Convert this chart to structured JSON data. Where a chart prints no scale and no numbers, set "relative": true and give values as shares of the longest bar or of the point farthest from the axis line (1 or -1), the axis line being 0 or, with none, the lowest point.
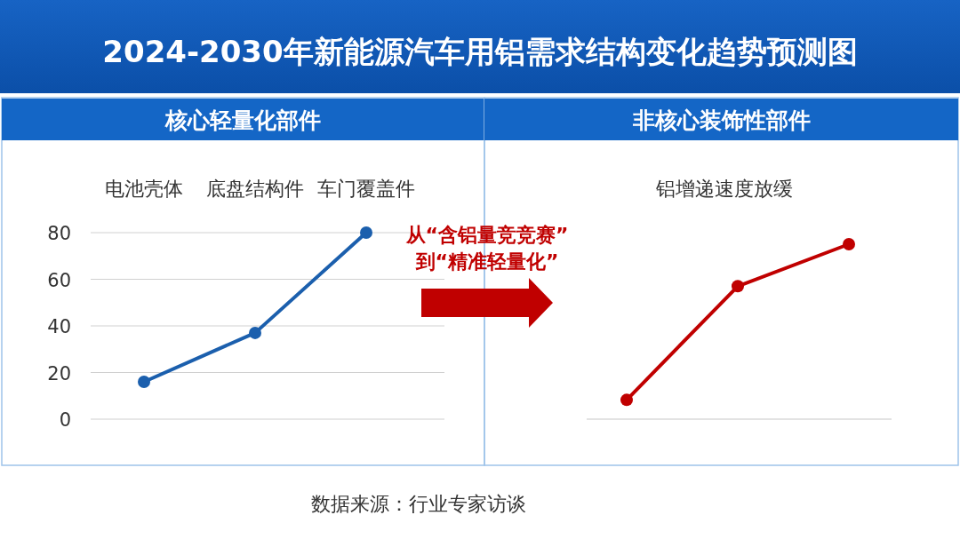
{
  "chart_data": [
    {
      "type": "line",
      "title": "2024-2030年新能源汽车用铝需求结构变化趋势预测图",
      "subtitle": "核心轻量化部件",
      "categories": [
        "电池壳体",
        "底盘结构件",
        "车门覆盖件"
      ],
      "values": [
        16,
        37,
        80
      ],
      "color": "#1b5fad",
      "ylim": [
        0,
        80
      ],
      "yticks": [
        0,
        20,
        40,
        60,
        80
      ],
      "grid": "y",
      "marker": "circle"
    },
    {
      "type": "line",
      "subtitle": "非核心装饰性部件",
      "categories": [
        null,
        null,
        null
      ],
      "values": [
        0.11,
        0.76,
        1
      ],
      "color": "#c00000",
      "relative": true,
      "marker": "circle",
      "annotations": [
        "铝增递速度放缓",
        "从“含铝量竞竞赛”",
        "到“精准轻量化”",
        "数据来源：行业专家访谈"
      ]
    }
  ]
}
